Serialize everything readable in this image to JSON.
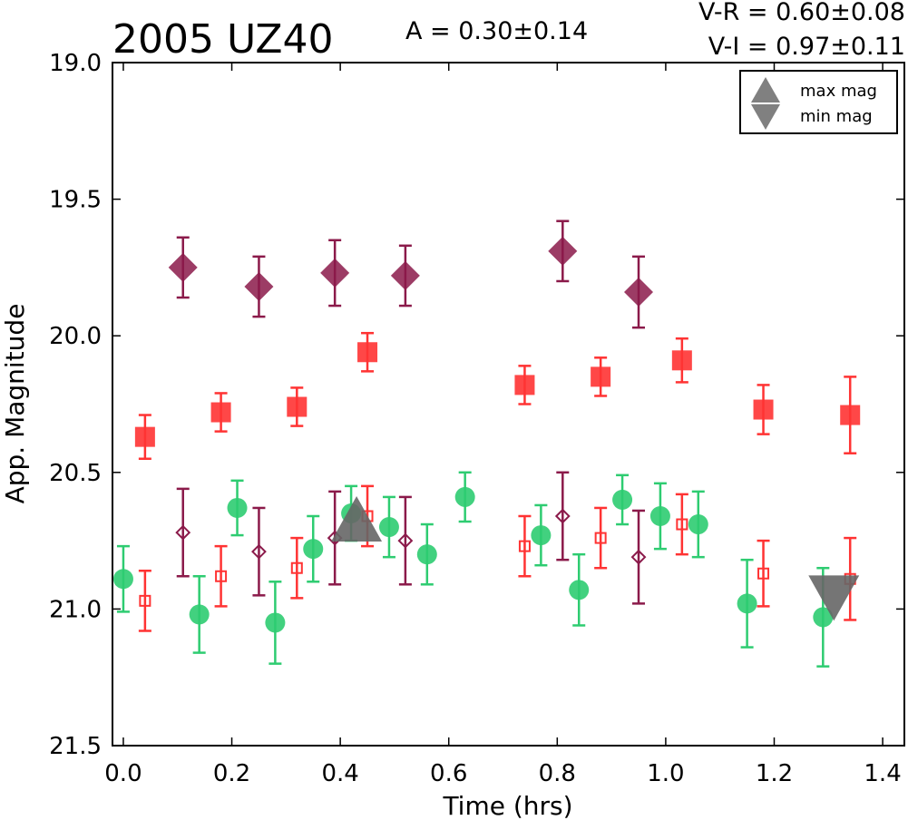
{
  "chart_data": {
    "type": "scatter",
    "title": "2005 UZ40",
    "annotations": {
      "amplitude": "A  = 0.30±0.14",
      "vr": "V-R = 0.60±0.08",
      "vi": "V-I  = 0.97±0.11"
    },
    "xlabel": "Time (hrs)",
    "ylabel": "App. Magnitude",
    "xlim": [
      -0.02,
      1.44
    ],
    "ylim": [
      19.0,
      21.5
    ],
    "y_inverted": true,
    "xticks": [
      "0.0",
      "0.2",
      "0.4",
      "0.6",
      "0.8",
      "1.0",
      "1.2",
      "1.4"
    ],
    "yticks": [
      "19.0",
      "19.5",
      "20.0",
      "20.5",
      "21.0",
      "21.5"
    ],
    "legend": {
      "position": "top-right",
      "entries": [
        {
          "label": "max mag",
          "marker": "triangle-up",
          "color": "#808080"
        },
        {
          "label": "min mag",
          "marker": "triangle-down",
          "color": "#808080"
        }
      ]
    },
    "series": [
      {
        "marker": "square-filled",
        "color": "#ff3333",
        "points": [
          {
            "x": 0.04,
            "y": 20.37,
            "err": 0.08
          },
          {
            "x": 0.18,
            "y": 20.28,
            "err": 0.07
          },
          {
            "x": 0.32,
            "y": 20.26,
            "err": 0.07
          },
          {
            "x": 0.45,
            "y": 20.06,
            "err": 0.07
          },
          {
            "x": 0.74,
            "y": 20.18,
            "err": 0.07
          },
          {
            "x": 0.88,
            "y": 20.15,
            "err": 0.07
          },
          {
            "x": 1.03,
            "y": 20.09,
            "err": 0.08
          },
          {
            "x": 1.18,
            "y": 20.27,
            "err": 0.09
          },
          {
            "x": 1.34,
            "y": 20.29,
            "err": 0.14
          }
        ]
      },
      {
        "marker": "diamond-filled",
        "color": "#8b1a4a",
        "points": [
          {
            "x": 0.11,
            "y": 19.75,
            "err": 0.11
          },
          {
            "x": 0.25,
            "y": 19.82,
            "err": 0.11
          },
          {
            "x": 0.39,
            "y": 19.77,
            "err": 0.12
          },
          {
            "x": 0.52,
            "y": 19.78,
            "err": 0.11
          },
          {
            "x": 0.81,
            "y": 19.69,
            "err": 0.11
          },
          {
            "x": 0.95,
            "y": 19.84,
            "err": 0.13
          }
        ]
      },
      {
        "marker": "circle-filled",
        "color": "#2ecc71",
        "points": [
          {
            "x": 0.0,
            "y": 20.89,
            "err": 0.12
          },
          {
            "x": 0.14,
            "y": 21.02,
            "err": 0.14
          },
          {
            "x": 0.21,
            "y": 20.63,
            "err": 0.1
          },
          {
            "x": 0.28,
            "y": 21.05,
            "err": 0.15
          },
          {
            "x": 0.35,
            "y": 20.78,
            "err": 0.12
          },
          {
            "x": 0.42,
            "y": 20.65,
            "err": 0.1
          },
          {
            "x": 0.49,
            "y": 20.7,
            "err": 0.11
          },
          {
            "x": 0.56,
            "y": 20.8,
            "err": 0.11
          },
          {
            "x": 0.63,
            "y": 20.59,
            "err": 0.09
          },
          {
            "x": 0.77,
            "y": 20.73,
            "err": 0.11
          },
          {
            "x": 0.84,
            "y": 20.93,
            "err": 0.13
          },
          {
            "x": 0.92,
            "y": 20.6,
            "err": 0.09
          },
          {
            "x": 0.99,
            "y": 20.66,
            "err": 0.12
          },
          {
            "x": 1.06,
            "y": 20.69,
            "err": 0.12
          },
          {
            "x": 1.15,
            "y": 20.98,
            "err": 0.16
          },
          {
            "x": 1.29,
            "y": 21.03,
            "err": 0.18
          }
        ]
      },
      {
        "marker": "square-open",
        "color": "#ff3333",
        "points": [
          {
            "x": 0.04,
            "y": 20.97,
            "err": 0.11
          },
          {
            "x": 0.18,
            "y": 20.88,
            "err": 0.11
          },
          {
            "x": 0.32,
            "y": 20.85,
            "err": 0.11
          },
          {
            "x": 0.45,
            "y": 20.66,
            "err": 0.11
          },
          {
            "x": 0.74,
            "y": 20.77,
            "err": 0.11
          },
          {
            "x": 0.88,
            "y": 20.74,
            "err": 0.11
          },
          {
            "x": 1.03,
            "y": 20.69,
            "err": 0.11
          },
          {
            "x": 1.18,
            "y": 20.87,
            "err": 0.12
          },
          {
            "x": 1.34,
            "y": 20.89,
            "err": 0.15
          }
        ]
      },
      {
        "marker": "diamond-open",
        "color": "#8b1a4a",
        "points": [
          {
            "x": 0.11,
            "y": 20.72,
            "err": 0.16
          },
          {
            "x": 0.25,
            "y": 20.79,
            "err": 0.16
          },
          {
            "x": 0.39,
            "y": 20.74,
            "err": 0.17
          },
          {
            "x": 0.52,
            "y": 20.75,
            "err": 0.16
          },
          {
            "x": 0.81,
            "y": 20.66,
            "err": 0.16
          },
          {
            "x": 0.95,
            "y": 20.81,
            "err": 0.17
          }
        ]
      }
    ],
    "extrema": [
      {
        "type": "max",
        "marker": "triangle-up",
        "x": 0.43,
        "y": 20.67
      },
      {
        "type": "min",
        "marker": "triangle-down",
        "x": 1.31,
        "y": 20.96
      }
    ]
  }
}
